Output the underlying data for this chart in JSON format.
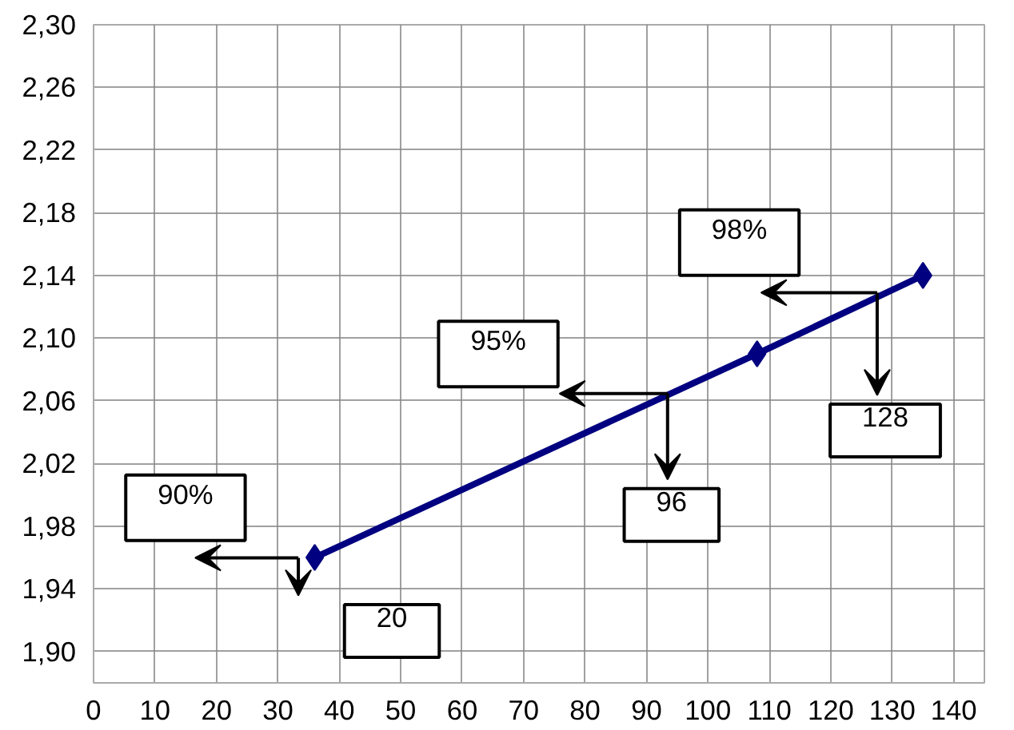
{
  "chart_data": {
    "type": "line",
    "x": [
      36,
      108,
      135
    ],
    "series": [
      {
        "color": "#000080",
        "values": [
          1.96,
          2.09,
          2.14
        ]
      }
    ],
    "xlim": [
      0,
      145
    ],
    "ylim": [
      1.88,
      2.3
    ],
    "xticks": [
      0,
      10,
      20,
      30,
      40,
      50,
      60,
      70,
      80,
      90,
      100,
      110,
      120,
      130,
      140
    ],
    "yticks": [
      {
        "value": 1.9,
        "label": "1,90"
      },
      {
        "value": 1.94,
        "label": "1,94"
      },
      {
        "value": 1.98,
        "label": "1,98"
      },
      {
        "value": 2.02,
        "label": "2,02"
      },
      {
        "value": 2.06,
        "label": "2,06"
      },
      {
        "value": 2.1,
        "label": "2,10"
      },
      {
        "value": 2.14,
        "label": "2,14"
      },
      {
        "value": 2.18,
        "label": "2,18"
      },
      {
        "value": 2.22,
        "label": "2,22"
      },
      {
        "value": 2.26,
        "label": "2,26"
      },
      {
        "value": 2.3,
        "label": "2,30"
      }
    ],
    "grid": true,
    "marker": "diamond",
    "line_style": "solid",
    "annotations": [
      "90%",
      "20",
      "95%",
      "96",
      "98%",
      "128"
    ]
  }
}
